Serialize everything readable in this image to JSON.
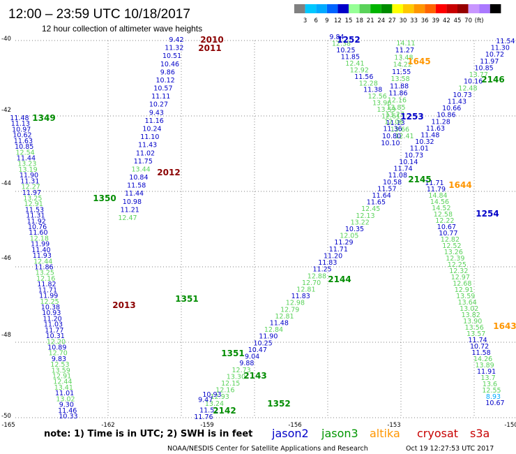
{
  "title": "12:00 – 23:59 UTC 10/18/2017",
  "subtitle": "12 hour collection of altimeter wave heights",
  "color_scale": {
    "colors": [
      "#808080",
      "#00c8ff",
      "#00aaff",
      "#0064ff",
      "#0000c8",
      "#96ff96",
      "#5ad25a",
      "#00b400",
      "#008c00",
      "#ffff00",
      "#ffc800",
      "#ff9600",
      "#ff6400",
      "#ff0000",
      "#c80000",
      "#960000",
      "#c896ff",
      "#aa78ff",
      "#000000"
    ],
    "labels": [
      "3",
      "6",
      "9",
      "12",
      "15",
      "18",
      "21",
      "24",
      "27",
      "30",
      "33",
      "36",
      "39",
      "42",
      "45",
      "70",
      "(ft)"
    ]
  },
  "lat_labels": [
    "-40",
    "-42",
    "-44",
    "-46",
    "-48",
    "-50"
  ],
  "lon_labels": [
    "-165",
    "-162",
    "-159",
    "-156",
    "-153",
    "-150"
  ],
  "note": "note:  1) Time is in UTC; 2) SWH is in feet",
  "legend": [
    {
      "label": "jason2",
      "color": "#0000c8"
    },
    {
      "label": "jason3",
      "color": "#009600"
    },
    {
      "label": "altika",
      "color": "#ff9600"
    },
    {
      "label": "cryosat",
      "color": "#c80000"
    },
    {
      "label": "s3a",
      "color": "#c80000"
    }
  ],
  "credit": "NOAA/NESDIS Center for Satellite Applications and Research",
  "timestamp": "Oct 19 12:27:53 UTC 2017",
  "track_labels": [
    {
      "text": "1252",
      "color": "#0000c8"
    },
    {
      "text": "2010",
      "color": "#8b0000"
    },
    {
      "text": "2011",
      "color": "#8b0000"
    },
    {
      "text": "1645",
      "color": "#ff9600"
    },
    {
      "text": "2146",
      "color": "#008c00"
    },
    {
      "text": "1349",
      "color": "#008c00"
    },
    {
      "text": "2012",
      "color": "#8b0000"
    },
    {
      "text": "1253",
      "color": "#0000c8"
    },
    {
      "text": "2145",
      "color": "#008c00"
    },
    {
      "text": "1644",
      "color": "#ff9600"
    },
    {
      "text": "1350",
      "color": "#008c00"
    },
    {
      "text": "1254",
      "color": "#0000c8"
    },
    {
      "text": "2144",
      "color": "#008c00"
    },
    {
      "text": "2013",
      "color": "#8b0000"
    },
    {
      "text": "1351",
      "color": "#008c00"
    },
    {
      "text": "1643",
      "color": "#ff9600"
    },
    {
      "text": "1351",
      "color": "#008c00"
    },
    {
      "text": "2143",
      "color": "#008c00"
    },
    {
      "text": "1352",
      "color": "#008c00"
    },
    {
      "text": "2142",
      "color": "#008c00"
    }
  ],
  "readings": [
    {
      "v": "9.42",
      "c": "#0000c8"
    },
    {
      "v": "11.32",
      "c": "#0000c8"
    },
    {
      "v": "10.51",
      "c": "#0000c8"
    },
    {
      "v": "10.46",
      "c": "#0000c8"
    },
    {
      "v": "9.86",
      "c": "#0000c8"
    },
    {
      "v": "10.12",
      "c": "#0000c8"
    },
    {
      "v": "10.57",
      "c": "#0000c8"
    },
    {
      "v": "11.11",
      "c": "#0000c8"
    },
    {
      "v": "10.27",
      "c": "#0000c8"
    },
    {
      "v": "9.43",
      "c": "#0000c8"
    },
    {
      "v": "11.16",
      "c": "#0000c8"
    },
    {
      "v": "10.24",
      "c": "#0000c8"
    },
    {
      "v": "11.10",
      "c": "#0000c8"
    },
    {
      "v": "11.43",
      "c": "#0000c8"
    },
    {
      "v": "11.02",
      "c": "#0000c8"
    },
    {
      "v": "11.75",
      "c": "#0000c8"
    },
    {
      "v": "13.44",
      "c": "#5ad25a"
    },
    {
      "v": "10.84",
      "c": "#0000c8"
    },
    {
      "v": "11.58",
      "c": "#0000c8"
    },
    {
      "v": "11.44",
      "c": "#0000c8"
    },
    {
      "v": "10.98",
      "c": "#0000c8"
    },
    {
      "v": "11.21",
      "c": "#0000c8"
    },
    {
      "v": "12.47",
      "c": "#5ad25a"
    },
    {
      "v": "11.48",
      "c": "#0000c8"
    },
    {
      "v": "11.13",
      "c": "#0000c8"
    },
    {
      "v": "10.97",
      "c": "#0000c8"
    },
    {
      "v": "10.62",
      "c": "#0000c8"
    },
    {
      "v": "11.63",
      "c": "#0000c8"
    },
    {
      "v": "10.85",
      "c": "#0000c8"
    },
    {
      "v": "12.54",
      "c": "#5ad25a"
    },
    {
      "v": "11.44",
      "c": "#0000c8"
    },
    {
      "v": "13.23",
      "c": "#5ad25a"
    },
    {
      "v": "13.19",
      "c": "#5ad25a"
    },
    {
      "v": "11.90",
      "c": "#0000c8"
    },
    {
      "v": "11.31",
      "c": "#0000c8"
    },
    {
      "v": "12.27",
      "c": "#5ad25a"
    },
    {
      "v": "11.97",
      "c": "#0000c8"
    },
    {
      "v": "13.25",
      "c": "#5ad25a"
    },
    {
      "v": "12.91",
      "c": "#5ad25a"
    },
    {
      "v": "11.53",
      "c": "#0000c8"
    },
    {
      "v": "11.31",
      "c": "#0000c8"
    },
    {
      "v": "11.92",
      "c": "#0000c8"
    },
    {
      "v": "10.76",
      "c": "#0000c8"
    },
    {
      "v": "11.60",
      "c": "#0000c8"
    },
    {
      "v": "12.18",
      "c": "#5ad25a"
    },
    {
      "v": "11.99",
      "c": "#0000c8"
    },
    {
      "v": "11.40",
      "c": "#0000c8"
    },
    {
      "v": "11.93",
      "c": "#0000c8"
    },
    {
      "v": "12.44",
      "c": "#5ad25a"
    },
    {
      "v": "11.86",
      "c": "#0000c8"
    },
    {
      "v": "13.25",
      "c": "#5ad25a"
    },
    {
      "v": "12.16",
      "c": "#5ad25a"
    },
    {
      "v": "11.82",
      "c": "#0000c8"
    },
    {
      "v": "11.71",
      "c": "#0000c8"
    },
    {
      "v": "11.99",
      "c": "#0000c8"
    },
    {
      "v": "12.25",
      "c": "#5ad25a"
    },
    {
      "v": "10.38",
      "c": "#0000c8"
    },
    {
      "v": "10.93",
      "c": "#0000c8"
    },
    {
      "v": "11.20",
      "c": "#0000c8"
    },
    {
      "v": "11.03",
      "c": "#0000c8"
    },
    {
      "v": "11.77",
      "c": "#0000c8"
    },
    {
      "v": "10.31",
      "c": "#0000c8"
    },
    {
      "v": "12.20",
      "c": "#5ad25a"
    },
    {
      "v": "10.89",
      "c": "#0000c8"
    },
    {
      "v": "12.70",
      "c": "#5ad25a"
    },
    {
      "v": "9.83",
      "c": "#0000c8"
    },
    {
      "v": "12.53",
      "c": "#5ad25a"
    },
    {
      "v": "13.59",
      "c": "#5ad25a"
    },
    {
      "v": "12.91",
      "c": "#5ad25a"
    },
    {
      "v": "12.44",
      "c": "#5ad25a"
    },
    {
      "v": "13.41",
      "c": "#5ad25a"
    },
    {
      "v": "11.01",
      "c": "#0000c8"
    },
    {
      "v": "13.02",
      "c": "#5ad25a"
    },
    {
      "v": "9.30",
      "c": "#0000c8"
    },
    {
      "v": "11.46",
      "c": "#0000c8"
    },
    {
      "v": "10.33",
      "c": "#0000c8"
    },
    {
      "v": "9.84",
      "c": "#0000c8"
    },
    {
      "v": "12.38",
      "c": "#5ad25a"
    },
    {
      "v": "10.25",
      "c": "#0000c8"
    },
    {
      "v": "11.85",
      "c": "#0000c8"
    },
    {
      "v": "12.41",
      "c": "#5ad25a"
    },
    {
      "v": "12.92",
      "c": "#5ad25a"
    },
    {
      "v": "11.56",
      "c": "#0000c8"
    },
    {
      "v": "12.28",
      "c": "#5ad25a"
    },
    {
      "v": "11.38",
      "c": "#0000c8"
    },
    {
      "v": "12.56",
      "c": "#5ad25a"
    },
    {
      "v": "13.96",
      "c": "#5ad25a"
    },
    {
      "v": "13.59",
      "c": "#5ad25a"
    },
    {
      "v": "12.61",
      "c": "#5ad25a"
    },
    {
      "v": "11.13",
      "c": "#0000c8"
    },
    {
      "v": "13.66",
      "c": "#5ad25a"
    },
    {
      "v": "12.41",
      "c": "#5ad25a"
    },
    {
      "v": "14.11",
      "c": "#5ad25a"
    },
    {
      "v": "11.27",
      "c": "#0000c8"
    },
    {
      "v": "13.48",
      "c": "#5ad25a"
    },
    {
      "v": "14.22",
      "c": "#5ad25a"
    },
    {
      "v": "11.55",
      "c": "#0000c8"
    },
    {
      "v": "13.58",
      "c": "#5ad25a"
    },
    {
      "v": "11.88",
      "c": "#0000c8"
    },
    {
      "v": "11.86",
      "c": "#0000c8"
    },
    {
      "v": "12.16",
      "c": "#5ad25a"
    },
    {
      "v": "13.85",
      "c": "#5ad25a"
    },
    {
      "v": "13.27",
      "c": "#5ad25a"
    },
    {
      "v": "12.06",
      "c": "#5ad25a"
    },
    {
      "v": "11.36",
      "c": "#0000c8"
    },
    {
      "v": "10.80",
      "c": "#0000c8"
    },
    {
      "v": "10.10",
      "c": "#0000c8"
    },
    {
      "v": "11.54",
      "c": "#0000c8"
    },
    {
      "v": "11.30",
      "c": "#0000c8"
    },
    {
      "v": "10.72",
      "c": "#0000c8"
    },
    {
      "v": "11.97",
      "c": "#0000c8"
    },
    {
      "v": "10.85",
      "c": "#0000c8"
    },
    {
      "v": "13.77",
      "c": "#5ad25a"
    },
    {
      "v": "10.16",
      "c": "#0000c8"
    },
    {
      "v": "12.48",
      "c": "#5ad25a"
    },
    {
      "v": "10.73",
      "c": "#0000c8"
    },
    {
      "v": "11.43",
      "c": "#0000c8"
    },
    {
      "v": "10.66",
      "c": "#0000c8"
    },
    {
      "v": "10.86",
      "c": "#0000c8"
    },
    {
      "v": "11.28",
      "c": "#0000c8"
    },
    {
      "v": "11.63",
      "c": "#0000c8"
    },
    {
      "v": "11.48",
      "c": "#0000c8"
    },
    {
      "v": "10.32",
      "c": "#0000c8"
    },
    {
      "v": "11.01",
      "c": "#0000c8"
    },
    {
      "v": "10.73",
      "c": "#0000c8"
    },
    {
      "v": "10.14",
      "c": "#0000c8"
    },
    {
      "v": "11.74",
      "c": "#0000c8"
    },
    {
      "v": "11.08",
      "c": "#0000c8"
    },
    {
      "v": "10.58",
      "c": "#0000c8"
    },
    {
      "v": "11.57",
      "c": "#0000c8"
    },
    {
      "v": "11.64",
      "c": "#0000c8"
    },
    {
      "v": "11.65",
      "c": "#0000c8"
    },
    {
      "v": "12.45",
      "c": "#5ad25a"
    },
    {
      "v": "12.13",
      "c": "#5ad25a"
    },
    {
      "v": "13.22",
      "c": "#5ad25a"
    },
    {
      "v": "10.35",
      "c": "#0000c8"
    },
    {
      "v": "12.05",
      "c": "#5ad25a"
    },
    {
      "v": "11.29",
      "c": "#0000c8"
    },
    {
      "v": "11.71",
      "c": "#0000c8"
    },
    {
      "v": "11.20",
      "c": "#0000c8"
    },
    {
      "v": "11.83",
      "c": "#0000c8"
    },
    {
      "v": "11.25",
      "c": "#0000c8"
    },
    {
      "v": "12.88",
      "c": "#5ad25a"
    },
    {
      "v": "12.70",
      "c": "#5ad25a"
    },
    {
      "v": "12.81",
      "c": "#5ad25a"
    },
    {
      "v": "11.83",
      "c": "#0000c8"
    },
    {
      "v": "12.98",
      "c": "#5ad25a"
    },
    {
      "v": "12.79",
      "c": "#5ad25a"
    },
    {
      "v": "12.81",
      "c": "#5ad25a"
    },
    {
      "v": "11.48",
      "c": "#0000c8"
    },
    {
      "v": "12.84",
      "c": "#5ad25a"
    },
    {
      "v": "11.90",
      "c": "#0000c8"
    },
    {
      "v": "10.25",
      "c": "#0000c8"
    },
    {
      "v": "10.47",
      "c": "#0000c8"
    },
    {
      "v": "9.04",
      "c": "#0000c8"
    },
    {
      "v": "9.88",
      "c": "#0000c8"
    },
    {
      "v": "12.73",
      "c": "#5ad25a"
    },
    {
      "v": "13.30",
      "c": "#5ad25a"
    },
    {
      "v": "12.15",
      "c": "#5ad25a"
    },
    {
      "v": "12.16",
      "c": "#5ad25a"
    },
    {
      "v": "12.93",
      "c": "#5ad25a"
    },
    {
      "v": "13.24",
      "c": "#5ad25a"
    },
    {
      "v": "11.52",
      "c": "#0000c8"
    },
    {
      "v": "11.76",
      "c": "#0000c8"
    },
    {
      "v": "11.71",
      "c": "#0000c8"
    },
    {
      "v": "11.79",
      "c": "#0000c8"
    },
    {
      "v": "14.84",
      "c": "#5ad25a"
    },
    {
      "v": "14.56",
      "c": "#5ad25a"
    },
    {
      "v": "14.52",
      "c": "#5ad25a"
    },
    {
      "v": "12.58",
      "c": "#5ad25a"
    },
    {
      "v": "12.22",
      "c": "#5ad25a"
    },
    {
      "v": "10.67",
      "c": "#0000c8"
    },
    {
      "v": "10.77",
      "c": "#0000c8"
    },
    {
      "v": "12.82",
      "c": "#5ad25a"
    },
    {
      "v": "12.52",
      "c": "#5ad25a"
    },
    {
      "v": "13.26",
      "c": "#5ad25a"
    },
    {
      "v": "12.39",
      "c": "#5ad25a"
    },
    {
      "v": "12.25",
      "c": "#5ad25a"
    },
    {
      "v": "12.32",
      "c": "#5ad25a"
    },
    {
      "v": "12.97",
      "c": "#5ad25a"
    },
    {
      "v": "12.68",
      "c": "#5ad25a"
    },
    {
      "v": "12.91",
      "c": "#5ad25a"
    },
    {
      "v": "13.59",
      "c": "#5ad25a"
    },
    {
      "v": "13.64",
      "c": "#5ad25a"
    },
    {
      "v": "13.02",
      "c": "#5ad25a"
    },
    {
      "v": "13.82",
      "c": "#5ad25a"
    },
    {
      "v": "13.90",
      "c": "#5ad25a"
    },
    {
      "v": "13.56",
      "c": "#5ad25a"
    },
    {
      "v": "13.57",
      "c": "#5ad25a"
    },
    {
      "v": "11.74",
      "c": "#0000c8"
    },
    {
      "v": "10.72",
      "c": "#0000c8"
    },
    {
      "v": "11.58",
      "c": "#0000c8"
    },
    {
      "v": "14.26",
      "c": "#5ad25a"
    },
    {
      "v": "13.89",
      "c": "#5ad25a"
    },
    {
      "v": "11.91",
      "c": "#0000c8"
    },
    {
      "v": "13.7",
      "c": "#5ad25a"
    },
    {
      "v": "13.6",
      "c": "#5ad25a"
    },
    {
      "v": "12.55",
      "c": "#5ad25a"
    },
    {
      "v": "8.93",
      "c": "#00aaff"
    },
    {
      "v": "10.67",
      "c": "#0000c8"
    },
    {
      "v": "10.93",
      "c": "#0000c8"
    },
    {
      "v": "9.47",
      "c": "#0000c8"
    }
  ]
}
